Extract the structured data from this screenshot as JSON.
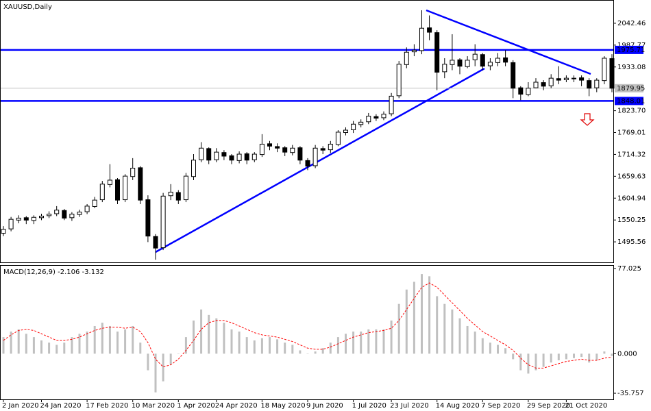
{
  "chart_data": [
    {
      "type": "candlestick",
      "title": "XAUUSD,Daily",
      "categories": [
        "2 Jan 2020",
        null,
        null,
        null,
        null,
        "24 Jan 2020",
        null,
        null,
        null,
        null,
        null,
        "17 Feb 2020",
        null,
        null,
        null,
        null,
        null,
        "10 Mar 2020",
        null,
        null,
        null,
        null,
        null,
        "1 Apr 2020",
        null,
        null,
        null,
        null,
        "24 Apr 2020",
        null,
        null,
        null,
        null,
        null,
        "18 May 2020",
        null,
        null,
        null,
        null,
        null,
        "9 Jun 2020",
        null,
        null,
        null,
        null,
        null,
        "1 Jul 2020",
        null,
        null,
        null,
        null,
        "23 Jul 2020",
        null,
        null,
        null,
        null,
        null,
        "14 Aug 2020",
        null,
        null,
        null,
        null,
        null,
        "7 Sep 2020",
        null,
        null,
        null,
        null,
        null,
        "29 Sep 2020",
        null,
        null,
        null,
        null,
        "21 Oct 2020",
        null,
        null,
        null,
        null,
        null,
        null
      ],
      "open": [
        1517,
        1528,
        1550,
        1556,
        1549,
        1556,
        1561,
        1566,
        1574,
        1556,
        1564,
        1571,
        1584,
        1601,
        1639,
        1651,
        1601,
        1659,
        1681,
        1601,
        1509,
        1481,
        1611,
        1619,
        1601,
        1659,
        1701,
        1729,
        1701,
        1719,
        1711,
        1699,
        1716,
        1701,
        1714,
        1741,
        1734,
        1731,
        1719,
        1731,
        1699,
        1686,
        1729,
        1726,
        1739,
        1769,
        1776,
        1789,
        1796,
        1809,
        1806,
        1816,
        1861,
        1939,
        1971,
        1974,
        2031,
        2019,
        1921,
        1939,
        1951,
        1934,
        1951,
        1964,
        1936,
        1944,
        1956,
        1944,
        1881,
        1864,
        1881,
        1894,
        1886,
        1904,
        1901,
        1904,
        1906,
        1899,
        1881,
        1899,
        1954
      ],
      "high": [
        1535,
        1558,
        1562,
        1560,
        1562,
        1566,
        1572,
        1585,
        1578,
        1570,
        1576,
        1590,
        1608,
        1648,
        1690,
        1655,
        1665,
        1705,
        1685,
        1612,
        1515,
        1618,
        1640,
        1625,
        1668,
        1715,
        1745,
        1732,
        1730,
        1725,
        1715,
        1722,
        1720,
        1720,
        1765,
        1748,
        1742,
        1735,
        1738,
        1735,
        1705,
        1738,
        1735,
        1748,
        1775,
        1782,
        1798,
        1802,
        1818,
        1815,
        1822,
        1868,
        1948,
        1982,
        1990,
        2075,
        2062,
        2025,
        1955,
        2015,
        1955,
        1960,
        1990,
        1968,
        1955,
        1968,
        1975,
        1950,
        1885,
        1895,
        1905,
        1900,
        1915,
        1935,
        1912,
        1912,
        1912,
        1905,
        1905,
        1960,
        1965
      ],
      "low": [
        1510,
        1522,
        1542,
        1540,
        1540,
        1550,
        1555,
        1560,
        1550,
        1548,
        1558,
        1565,
        1580,
        1595,
        1632,
        1590,
        1595,
        1650,
        1590,
        1495,
        1451,
        1475,
        1600,
        1590,
        1595,
        1650,
        1695,
        1690,
        1695,
        1700,
        1690,
        1692,
        1690,
        1695,
        1708,
        1725,
        1720,
        1710,
        1712,
        1690,
        1675,
        1680,
        1715,
        1718,
        1735,
        1762,
        1768,
        1782,
        1790,
        1798,
        1800,
        1810,
        1855,
        1930,
        1960,
        1965,
        2000,
        1875,
        1905,
        1925,
        1915,
        1930,
        1935,
        1925,
        1925,
        1935,
        1935,
        1855,
        1850,
        1860,
        1880,
        1875,
        1880,
        1890,
        1895,
        1895,
        1885,
        1860,
        1870,
        1890,
        1870
      ],
      "close": [
        1527,
        1552,
        1555,
        1550,
        1557,
        1560,
        1565,
        1575,
        1555,
        1565,
        1570,
        1585,
        1600,
        1640,
        1650,
        1600,
        1660,
        1680,
        1600,
        1510,
        1480,
        1610,
        1620,
        1600,
        1660,
        1700,
        1730,
        1700,
        1720,
        1710,
        1700,
        1715,
        1700,
        1715,
        1740,
        1735,
        1730,
        1720,
        1730,
        1700,
        1685,
        1730,
        1725,
        1740,
        1770,
        1775,
        1790,
        1795,
        1810,
        1805,
        1815,
        1860,
        1940,
        1970,
        1975,
        2030,
        2020,
        1920,
        1940,
        1950,
        1935,
        1950,
        1965,
        1935,
        1945,
        1955,
        1945,
        1880,
        1865,
        1880,
        1895,
        1885,
        1905,
        1900,
        1905,
        1905,
        1900,
        1880,
        1900,
        1955,
        1879.95
      ],
      "up_color": "#ffffff",
      "down_color": "#000000",
      "ylim": [
        1444.3,
        2098.9
      ],
      "yticks": [
        2042.46,
        1987.77,
        1933.08,
        {
          "value": 1823.7,
          "label": "1823.70"
        },
        1769.01,
        1714.32,
        1659.63,
        1604.94,
        1550.25,
        1495.56
      ],
      "levels": [
        1975.71,
        1848.01
      ],
      "level_color": "#0000ff",
      "current_price": 1879.95
    },
    {
      "type": "macd",
      "title": "MACD(12,26,9)",
      "series": [
        {
          "name": "histogram",
          "color": "#c0c0c0",
          "values": [
            15,
            20,
            22,
            18,
            15,
            12,
            10,
            8,
            10,
            15,
            18,
            20,
            25,
            28,
            25,
            20,
            22,
            25,
            10,
            -15,
            -35,
            -25,
            -10,
            0,
            15,
            30,
            40,
            35,
            32,
            28,
            22,
            20,
            15,
            12,
            14,
            15,
            13,
            10,
            8,
            3,
            0,
            2,
            5,
            10,
            15,
            18,
            20,
            20,
            22,
            22,
            22,
            30,
            45,
            58,
            65,
            72,
            70,
            52,
            45,
            40,
            32,
            25,
            20,
            14,
            10,
            8,
            5,
            -5,
            -15,
            -18,
            -15,
            -12,
            -8,
            -6,
            -5,
            -4,
            -3,
            -8,
            -6,
            2,
            -2.106
          ]
        },
        {
          "name": "signal",
          "color": "#ff0000",
          "values": [
            12,
            17,
            21,
            22,
            21,
            18,
            15,
            12,
            12,
            13,
            15,
            18,
            21,
            23,
            24,
            24,
            23,
            24,
            20,
            10,
            -5,
            -12,
            -10,
            -5,
            3,
            12,
            22,
            28,
            30,
            30,
            28,
            25,
            22,
            19,
            17,
            16,
            15,
            13,
            11,
            8,
            5,
            4,
            4,
            6,
            9,
            12,
            15,
            17,
            19,
            20,
            21,
            23,
            30,
            40,
            50,
            60,
            64,
            60,
            53,
            46,
            39,
            32,
            26,
            20,
            16,
            12,
            8,
            3,
            -4,
            -10,
            -13,
            -13,
            -11,
            -9,
            -7,
            -6,
            -5,
            -6,
            -6,
            -4,
            -3.132
          ]
        }
      ],
      "ylim": [
        -41.3,
        79.49
      ],
      "yticks": [
        77.025,
        {
          "value": 0,
          "label": "0.000"
        },
        -35.757
      ]
    }
  ]
}
